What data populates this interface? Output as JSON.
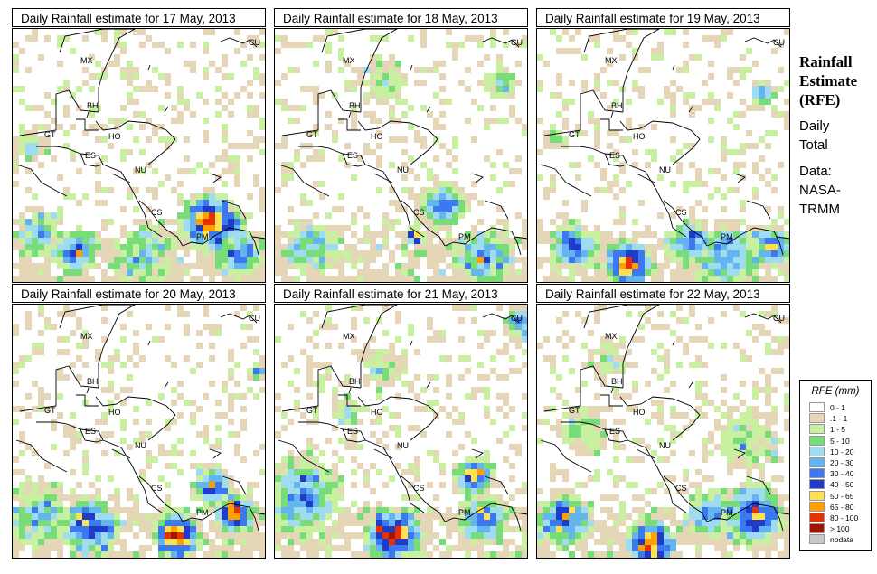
{
  "panels": [
    {
      "title": "Daily Rainfall estimate for  17 May, 2013",
      "day": 0
    },
    {
      "title": "Daily Rainfall estimate for  18 May, 2013",
      "day": 1
    },
    {
      "title": "Daily Rainfall estimate for  19 May, 2013",
      "day": 2
    },
    {
      "title": "Daily Rainfall estimate for  20 May, 2013",
      "day": 3
    },
    {
      "title": "Daily Rainfall estimate for  21 May, 2013",
      "day": 4
    },
    {
      "title": "Daily Rainfall estimate for  22 May, 2013",
      "day": 5
    }
  ],
  "country_labels": [
    "MX",
    "BH",
    "GT",
    "HO",
    "ES",
    "NU",
    "CS",
    "PM",
    "CU"
  ],
  "side": {
    "line1": "Rainfall",
    "line2": "Estimate",
    "line3": "(RFE)",
    "line4": "Daily",
    "line5": "Total",
    "line6": "Data:",
    "line7": "NASA-",
    "line8": "TRMM"
  },
  "legend": {
    "title": "RFE (mm)",
    "items": [
      {
        "label": "0 - 1",
        "color": "#ffffff"
      },
      {
        "label": ".1 - 1",
        "color": "#e6d6b8"
      },
      {
        "label": "1 - 5",
        "color": "#c8f0a0"
      },
      {
        "label": "5 - 10",
        "color": "#78dc78"
      },
      {
        "label": "10 - 20",
        "color": "#a0dcf0"
      },
      {
        "label": "20 - 30",
        "color": "#64b4f0"
      },
      {
        "label": "30 - 40",
        "color": "#3c78f0"
      },
      {
        "label": "40 - 50",
        "color": "#1e3cc8"
      },
      {
        "label": "50 - 65",
        "color": "#ffe150"
      },
      {
        "label": "65 - 80",
        "color": "#ffa000"
      },
      {
        "label": "80 - 100",
        "color": "#e63200"
      },
      {
        "label": "> 100",
        "color": "#a01400"
      },
      {
        "label": "nodata",
        "color": "#c8c8c8"
      }
    ]
  }
}
